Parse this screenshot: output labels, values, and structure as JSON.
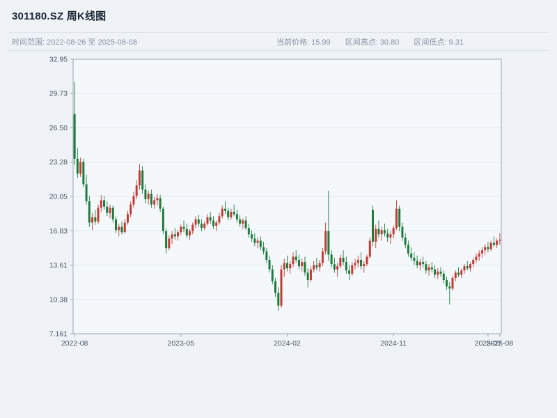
{
  "header": {
    "title": "301180.SZ 周K线图",
    "time_range": "时间范围: 2022-08-26 至 2025-08-08",
    "current_price": "当前价格: 15.99",
    "range_high": "区间高点: 30.80",
    "range_low": "区间低点: 9.31"
  },
  "chart_data": {
    "type": "candlestick",
    "title": "301180.SZ 周K线图",
    "symbol": "301180.SZ",
    "interval": "weekly",
    "start_date": "2022-08-26",
    "end_date": "2025-08-08",
    "current_price": 15.99,
    "period_high": 30.8,
    "period_low": 9.31,
    "ylim": [
      7.161,
      32.95
    ],
    "y_ticks": [
      "32.95",
      "29.73",
      "26.50",
      "23.28",
      "20.05",
      "16.83",
      "13.61",
      "10.38",
      "7.161"
    ],
    "x_ticks": [
      {
        "index": 0,
        "label": "2022-08"
      },
      {
        "index": 36,
        "label": "2023-05"
      },
      {
        "index": 72,
        "label": "2024-02"
      },
      {
        "index": 108,
        "label": "2024-11"
      },
      {
        "index": 140,
        "label": "2025-07"
      },
      {
        "index": 144,
        "label": "2025-08"
      }
    ],
    "up_color": "#c23b35",
    "down_color": "#1e7b3e",
    "plot_bg": "#f4f8fb",
    "grid_color": "#e2e9f1",
    "axis_color": "#98a4b1",
    "tick_label_color": "#4a5561",
    "grid": true,
    "ohlc": [
      [
        27.8,
        30.8,
        23.0,
        23.6
      ],
      [
        23.6,
        24.6,
        21.8,
        22.2
      ],
      [
        22.2,
        23.7,
        21.9,
        23.3
      ],
      [
        23.3,
        23.6,
        20.9,
        21.2
      ],
      [
        21.2,
        22.1,
        19.3,
        19.6
      ],
      [
        19.6,
        20.1,
        17.2,
        17.6
      ],
      [
        17.6,
        18.5,
        16.9,
        18.1
      ],
      [
        18.1,
        18.8,
        17.4,
        17.7
      ],
      [
        17.7,
        19.3,
        17.5,
        19.0
      ],
      [
        19.0,
        20.2,
        18.6,
        19.7
      ],
      [
        19.7,
        20.1,
        18.8,
        19.1
      ],
      [
        19.1,
        19.6,
        18.2,
        18.5
      ],
      [
        18.5,
        19.3,
        18.0,
        19.0
      ],
      [
        19.0,
        19.2,
        17.6,
        17.9
      ],
      [
        17.9,
        18.2,
        16.6,
        16.9
      ],
      [
        16.9,
        17.5,
        16.3,
        17.2
      ],
      [
        17.2,
        17.7,
        16.5,
        16.7
      ],
      [
        16.7,
        17.9,
        16.6,
        17.6
      ],
      [
        17.6,
        18.7,
        17.4,
        18.4
      ],
      [
        18.4,
        19.6,
        18.1,
        19.3
      ],
      [
        19.3,
        20.5,
        19.0,
        20.1
      ],
      [
        20.1,
        21.6,
        19.8,
        21.1
      ],
      [
        21.1,
        23.1,
        20.7,
        22.5
      ],
      [
        22.5,
        22.9,
        20.3,
        20.7
      ],
      [
        20.7,
        21.2,
        19.4,
        19.8
      ],
      [
        19.8,
        20.6,
        19.3,
        20.3
      ],
      [
        20.3,
        20.7,
        19.0,
        19.3
      ],
      [
        19.3,
        20.0,
        18.9,
        19.7
      ],
      [
        19.7,
        20.3,
        19.2,
        19.9
      ],
      [
        19.9,
        20.2,
        18.6,
        18.9
      ],
      [
        18.9,
        19.1,
        16.5,
        16.8
      ],
      [
        16.8,
        17.0,
        14.7,
        15.2
      ],
      [
        15.2,
        16.4,
        15.0,
        16.1
      ],
      [
        16.1,
        16.8,
        15.6,
        16.5
      ],
      [
        16.5,
        17.1,
        16.0,
        16.3
      ],
      [
        16.3,
        16.9,
        15.9,
        16.7
      ],
      [
        16.7,
        17.4,
        16.4,
        17.2
      ],
      [
        17.2,
        17.8,
        16.7,
        17.0
      ],
      [
        17.0,
        17.5,
        16.2,
        16.4
      ],
      [
        16.4,
        17.0,
        16.0,
        16.8
      ],
      [
        16.8,
        17.6,
        16.5,
        17.4
      ],
      [
        17.4,
        18.2,
        17.1,
        17.9
      ],
      [
        17.9,
        18.3,
        17.2,
        17.5
      ],
      [
        17.5,
        17.9,
        16.8,
        17.1
      ],
      [
        17.1,
        17.7,
        16.9,
        17.5
      ],
      [
        17.5,
        18.4,
        17.3,
        18.1
      ],
      [
        18.1,
        18.6,
        17.5,
        17.8
      ],
      [
        17.8,
        18.2,
        17.0,
        17.3
      ],
      [
        17.3,
        17.8,
        16.8,
        17.6
      ],
      [
        17.6,
        18.5,
        17.4,
        18.2
      ],
      [
        18.2,
        19.2,
        18.0,
        18.9
      ],
      [
        18.9,
        19.6,
        18.4,
        18.7
      ],
      [
        18.7,
        19.0,
        17.8,
        18.1
      ],
      [
        18.1,
        18.9,
        17.9,
        18.6
      ],
      [
        18.6,
        19.3,
        18.2,
        18.4
      ],
      [
        18.4,
        18.8,
        17.6,
        17.9
      ],
      [
        17.9,
        18.3,
        17.2,
        17.5
      ],
      [
        17.5,
        18.0,
        17.0,
        17.8
      ],
      [
        17.8,
        18.2,
        16.9,
        17.1
      ],
      [
        17.1,
        17.5,
        16.2,
        16.5
      ],
      [
        16.5,
        16.9,
        15.8,
        16.1
      ],
      [
        16.1,
        16.6,
        15.4,
        15.7
      ],
      [
        15.7,
        16.2,
        15.2,
        15.9
      ],
      [
        15.9,
        16.3,
        15.0,
        15.3
      ],
      [
        15.3,
        15.8,
        14.6,
        14.9
      ],
      [
        14.9,
        15.2,
        13.8,
        14.1
      ],
      [
        14.1,
        14.5,
        12.9,
        13.2
      ],
      [
        13.2,
        13.6,
        11.8,
        12.1
      ],
      [
        12.1,
        12.4,
        10.6,
        11.0
      ],
      [
        11.0,
        11.5,
        9.31,
        9.8
      ],
      [
        9.8,
        13.6,
        9.6,
        13.2
      ],
      [
        13.2,
        14.2,
        12.5,
        13.8
      ],
      [
        13.8,
        14.5,
        13.0,
        13.3
      ],
      [
        13.3,
        14.0,
        12.8,
        13.7
      ],
      [
        13.7,
        14.8,
        13.4,
        14.4
      ],
      [
        14.4,
        15.0,
        13.8,
        14.1
      ],
      [
        14.1,
        14.6,
        13.2,
        13.5
      ],
      [
        13.5,
        14.2,
        13.0,
        13.9
      ],
      [
        13.9,
        14.4,
        12.6,
        12.9
      ],
      [
        12.9,
        13.3,
        11.5,
        12.2
      ],
      [
        12.2,
        13.5,
        12.0,
        13.2
      ],
      [
        13.2,
        14.0,
        12.9,
        13.6
      ],
      [
        13.6,
        14.3,
        13.1,
        13.4
      ],
      [
        13.4,
        14.1,
        13.0,
        13.8
      ],
      [
        13.8,
        15.2,
        13.5,
        14.9
      ],
      [
        14.9,
        17.6,
        14.6,
        16.8
      ],
      [
        16.8,
        20.6,
        14.0,
        14.6
      ],
      [
        14.6,
        15.0,
        13.4,
        13.7
      ],
      [
        13.7,
        14.3,
        12.9,
        13.2
      ],
      [
        13.2,
        13.8,
        12.5,
        13.5
      ],
      [
        13.5,
        14.6,
        13.3,
        14.3
      ],
      [
        14.3,
        15.0,
        13.6,
        13.9
      ],
      [
        13.9,
        14.4,
        12.8,
        13.1
      ],
      [
        13.1,
        13.6,
        12.2,
        12.8
      ],
      [
        12.8,
        13.9,
        12.6,
        13.6
      ],
      [
        13.6,
        14.2,
        13.2,
        13.8
      ],
      [
        13.8,
        14.5,
        13.4,
        14.1
      ],
      [
        14.1,
        14.8,
        13.2,
        13.5
      ],
      [
        13.5,
        14.0,
        12.9,
        13.7
      ],
      [
        13.7,
        14.6,
        13.5,
        14.4
      ],
      [
        14.4,
        16.2,
        14.2,
        15.9
      ],
      [
        18.8,
        19.2,
        15.4,
        15.8
      ],
      [
        15.8,
        17.4,
        15.2,
        17.0
      ],
      [
        17.0,
        17.8,
        16.2,
        16.5
      ],
      [
        16.5,
        17.2,
        15.9,
        16.9
      ],
      [
        16.9,
        17.5,
        16.3,
        16.6
      ],
      [
        16.6,
        17.0,
        15.8,
        16.2
      ],
      [
        16.2,
        16.8,
        15.6,
        16.5
      ],
      [
        16.5,
        17.3,
        16.1,
        17.1
      ],
      [
        17.1,
        19.7,
        16.9,
        18.9
      ],
      [
        18.9,
        19.2,
        16.8,
        17.2
      ],
      [
        17.2,
        17.6,
        15.9,
        16.2
      ],
      [
        16.2,
        16.6,
        15.2,
        15.5
      ],
      [
        15.5,
        15.9,
        14.4,
        14.7
      ],
      [
        14.7,
        15.3,
        14.0,
        14.3
      ],
      [
        14.3,
        14.8,
        13.6,
        14.0
      ],
      [
        14.0,
        14.5,
        13.3,
        13.6
      ],
      [
        13.6,
        14.2,
        13.1,
        13.9
      ],
      [
        13.9,
        14.4,
        13.4,
        13.7
      ],
      [
        13.7,
        14.0,
        12.8,
        13.1
      ],
      [
        13.1,
        13.7,
        12.6,
        13.4
      ],
      [
        13.4,
        13.9,
        12.9,
        13.2
      ],
      [
        13.2,
        13.6,
        12.4,
        12.7
      ],
      [
        12.7,
        13.3,
        12.3,
        13.0
      ],
      [
        13.0,
        13.4,
        12.5,
        12.8
      ],
      [
        12.8,
        13.1,
        11.9,
        12.2
      ],
      [
        12.2,
        12.5,
        11.3,
        11.6
      ],
      [
        11.6,
        12.0,
        9.9,
        11.4
      ],
      [
        11.4,
        12.6,
        11.2,
        12.4
      ],
      [
        12.4,
        13.1,
        12.1,
        12.9
      ],
      [
        12.9,
        13.4,
        12.5,
        12.7
      ],
      [
        12.7,
        13.3,
        12.4,
        13.1
      ],
      [
        13.1,
        13.7,
        12.8,
        13.5
      ],
      [
        13.5,
        14.0,
        13.1,
        13.3
      ],
      [
        13.3,
        13.9,
        13.0,
        13.7
      ],
      [
        13.7,
        14.3,
        13.4,
        14.1
      ],
      [
        14.1,
        14.7,
        13.8,
        14.4
      ],
      [
        14.4,
        15.0,
        14.0,
        14.7
      ],
      [
        14.7,
        15.3,
        14.3,
        15.0
      ],
      [
        15.0,
        15.6,
        14.6,
        15.3
      ],
      [
        15.3,
        15.8,
        14.8,
        15.1
      ],
      [
        15.1,
        15.9,
        14.9,
        15.7
      ],
      [
        15.7,
        16.3,
        15.3,
        15.5
      ],
      [
        15.5,
        16.1,
        15.2,
        15.9
      ],
      [
        15.9,
        16.6,
        15.5,
        15.99
      ]
    ]
  }
}
